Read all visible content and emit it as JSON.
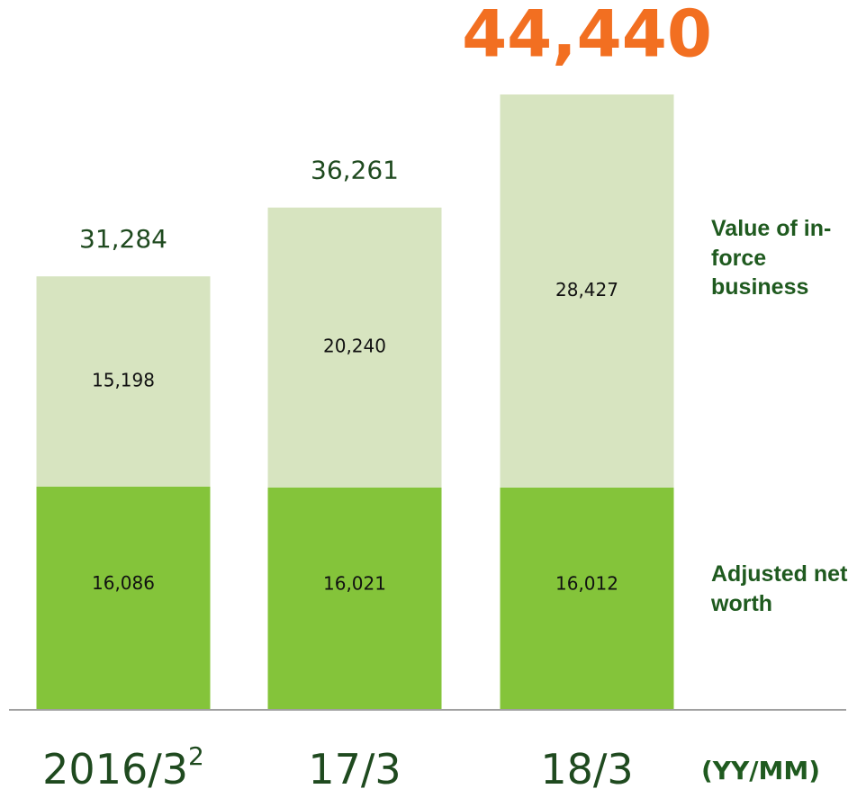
{
  "chart_data": {
    "type": "stacked-bar",
    "categories": [
      "2016/3",
      "17/3",
      "18/3"
    ],
    "category_footnotes": [
      "2",
      null,
      null
    ],
    "series": [
      {
        "name": "Adjusted net worth",
        "color": "#84c43a",
        "values": [
          16086,
          16021,
          16012
        ],
        "value_labels": [
          "16,086",
          "16,021",
          "16,012"
        ]
      },
      {
        "name": "Value of in-force business",
        "color": "#d7e4c0",
        "values": [
          15198,
          20240,
          28427
        ],
        "value_labels": [
          "15,198",
          "20,240",
          "28,427"
        ]
      }
    ],
    "totals": [
      31284,
      36261,
      44440
    ],
    "total_labels": [
      "31,284",
      "36,261",
      "44,440"
    ],
    "highlight": {
      "index": 2,
      "color": "#f26f21"
    },
    "x_label": "(YY/MM)"
  }
}
